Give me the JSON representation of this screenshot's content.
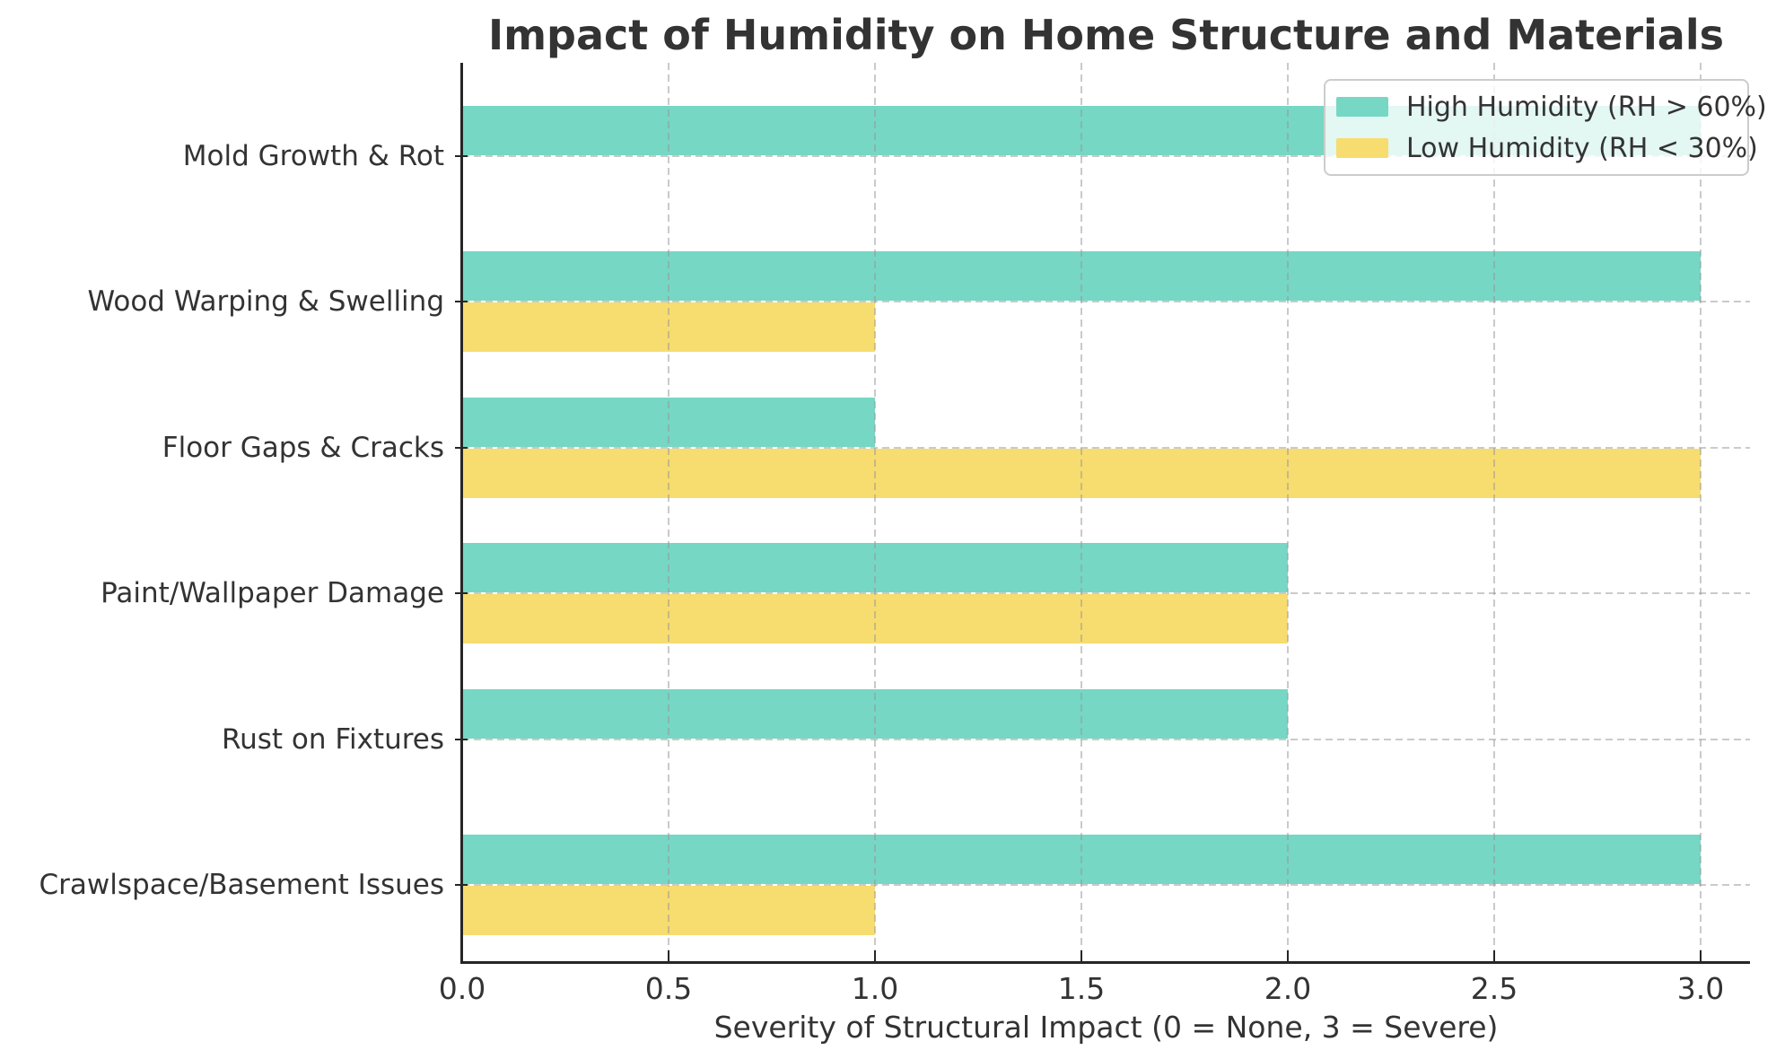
{
  "chart_data": {
    "type": "bar",
    "orientation": "horizontal",
    "title": "Impact of Humidity on Home Structure and Materials",
    "xlabel": "Severity of Structural Impact (0 = None, 3 = Severe)",
    "ylabel": "",
    "categories": [
      "Mold Growth & Rot",
      "Wood Warping & Swelling",
      "Floor Gaps & Cracks",
      "Paint/Wallpaper Damage",
      "Rust on Fixtures",
      "Crawlspace/Basement Issues"
    ],
    "series": [
      {
        "name": "High Humidity (RH > 60%)",
        "color": "#76D7C4",
        "values": [
          3,
          3,
          1,
          2,
          2,
          3
        ]
      },
      {
        "name": "Low Humidity (RH < 30%)",
        "color": "#F7DC6F",
        "values": [
          0,
          1,
          3,
          2,
          0,
          1
        ]
      }
    ],
    "xticks": [
      "0.0",
      "0.5",
      "1.0",
      "1.5",
      "2.0",
      "2.5",
      "3.0"
    ],
    "xlim": [
      0,
      3.12
    ],
    "grid": {
      "vertical": true,
      "horizontal": true,
      "style": "dashed",
      "color": "#b0b0b0"
    },
    "legend_position": "upper right",
    "colors": {
      "axis": "#262626",
      "text": "#333333",
      "background": "#ffffff",
      "legend_border": "#cccccc"
    }
  }
}
